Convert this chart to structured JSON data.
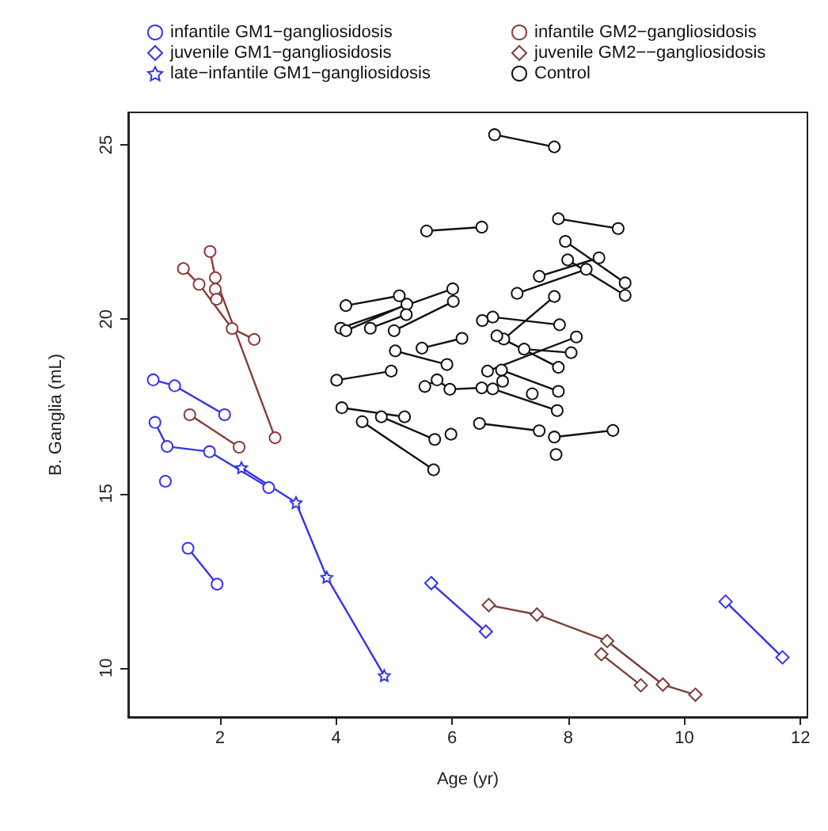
{
  "chart_data": {
    "type": "line",
    "xlabel": "Age (yr)",
    "ylabel": "B. Ganglia (mL)",
    "xlim": [
      0.42,
      12.12
    ],
    "ylim": [
      8.59,
      25.93
    ],
    "xticks": [
      2,
      4,
      6,
      8,
      10,
      12
    ],
    "yticks": [
      10,
      15,
      20,
      25
    ],
    "grid": false,
    "legend": "top",
    "series": [
      {
        "name": "infantile GM1−gangliosidosis",
        "color": "#3333ee",
        "marker": "circle",
        "x": [
          0.85,
          1.22,
          2.08,
          null,
          0.88,
          1.09,
          1.82,
          2.84,
          null,
          1.06,
          null,
          1.45,
          1.95
        ],
        "values": [
          18.26,
          18.09,
          17.26,
          null,
          17.04,
          16.35,
          16.2,
          15.17,
          null,
          15.35,
          null,
          13.43,
          12.4
        ]
      },
      {
        "name": "juvenile GM1−gangliosidosis",
        "color": "#3333ee",
        "marker": "diamond",
        "x": [
          5.64,
          6.58,
          null,
          10.71,
          11.69
        ],
        "values": [
          12.43,
          11.04,
          null,
          11.9,
          10.3
        ]
      },
      {
        "name": "late−infantile GM1−gangliosidosis",
        "color": "#3333ee",
        "marker": "star",
        "x": [
          2.37,
          3.31,
          3.84,
          4.83
        ],
        "values": [
          15.74,
          14.74,
          12.6,
          9.78
        ]
      },
      {
        "name": "infantile GM2−gangliosidosis",
        "color": "#8b3a3a",
        "marker": "circle",
        "x": [
          1.83,
          1.92,
          2.95,
          null,
          1.37,
          1.64,
          2.21,
          2.59,
          null,
          1.92,
          1.94,
          null,
          1.48,
          2.33
        ],
        "values": [
          21.94,
          21.19,
          16.6,
          null,
          21.45,
          21.0,
          19.73,
          19.42,
          null,
          20.86,
          20.57,
          null,
          17.26,
          16.33
        ]
      },
      {
        "name": "juvenile GM2−−gangliosidosis",
        "color": "#7a4038",
        "marker": "diamond",
        "x": [
          6.63,
          7.46,
          8.67,
          9.63,
          10.19,
          null,
          8.57,
          9.25
        ],
        "values": [
          11.8,
          11.53,
          10.77,
          9.52,
          9.23,
          null,
          10.39,
          9.5
        ]
      },
      {
        "name": "Control",
        "color": "#111111",
        "marker": "circle",
        "x": [
          5.56,
          6.51,
          null,
          4.17,
          5.09,
          null,
          4.08,
          6.01,
          null,
          4.17,
          5.22,
          null,
          4.59,
          5.21,
          null,
          5.0,
          6.02,
          null,
          5.02,
          5.91,
          null,
          5.48,
          6.17,
          null,
          4.01,
          4.95,
          null,
          5.53,
          5.74,
          5.96,
          6.51,
          null,
          4.1,
          5.18,
          null,
          4.78,
          5.7,
          null,
          4.45,
          5.68,
          null,
          5.98,
          null,
          6.73,
          7.76,
          null,
          7.83,
          8.86,
          null,
          7.95,
          8.98,
          null,
          7.99,
          8.98,
          null,
          7.5,
          8.53,
          null,
          7.12,
          8.31,
          null,
          7.76,
          6.89,
          null,
          6.7,
          7.85,
          null,
          6.52,
          null,
          6.77,
          7.83,
          null,
          6.61,
          8.14,
          null,
          7.24,
          8.05,
          null,
          6.85,
          7.83,
          null,
          6.87,
          null,
          7.38,
          null,
          6.7,
          7.81,
          null,
          6.47,
          7.5,
          null,
          7.76,
          8.77,
          null,
          7.79
        ],
        "values": [
          22.53,
          22.64,
          null,
          20.39,
          20.67,
          null,
          19.74,
          20.87,
          null,
          19.67,
          20.43,
          null,
          19.74,
          20.13,
          null,
          19.67,
          20.51,
          null,
          19.09,
          18.7,
          null,
          19.17,
          19.45,
          null,
          18.25,
          18.51,
          null,
          18.07,
          18.26,
          17.99,
          18.03,
          null,
          17.46,
          17.2,
          null,
          17.2,
          16.55,
          null,
          17.06,
          15.68,
          null,
          16.7,
          null,
          25.29,
          24.94,
          null,
          22.88,
          22.6,
          null,
          22.23,
          21.04,
          null,
          21.7,
          20.68,
          null,
          21.23,
          21.76,
          null,
          20.74,
          21.43,
          null,
          20.65,
          19.43,
          null,
          20.06,
          19.84,
          null,
          19.96,
          null,
          19.52,
          18.62,
          null,
          18.51,
          19.49,
          null,
          19.14,
          19.04,
          null,
          18.54,
          17.93,
          null,
          18.22,
          null,
          17.86,
          null,
          18.0,
          17.38,
          null,
          17.01,
          16.8,
          null,
          16.62,
          16.81,
          null,
          16.12
        ]
      }
    ]
  }
}
